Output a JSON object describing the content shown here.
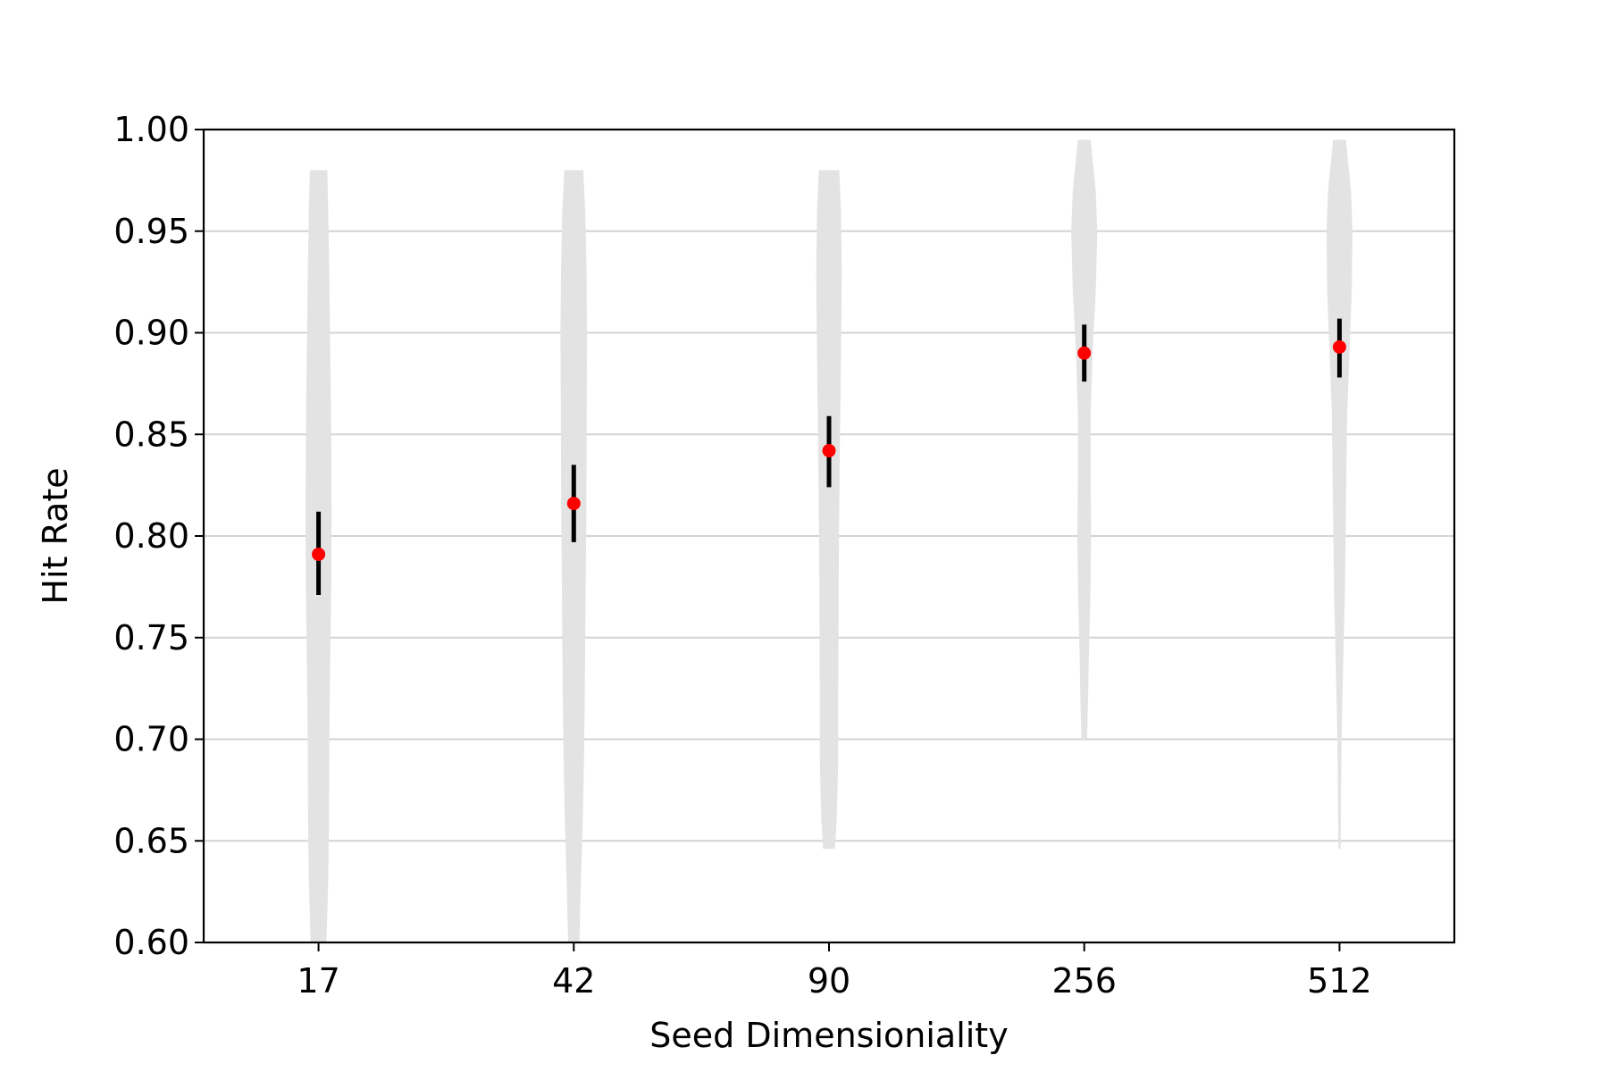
{
  "chart_data": {
    "type": "violin",
    "title": "",
    "xlabel": "Seed Dimensioniality",
    "ylabel": "Hit Rate",
    "ylim": [
      0.6,
      1.0
    ],
    "yticks": [
      "0.60",
      "0.65",
      "0.70",
      "0.75",
      "0.80",
      "0.85",
      "0.90",
      "0.95",
      "1.00"
    ],
    "grid": "y-major",
    "categories": [
      "17",
      "42",
      "90",
      "256",
      "512"
    ],
    "means": [
      0.791,
      0.816,
      0.842,
      0.89,
      0.893
    ],
    "error_low": [
      0.771,
      0.797,
      0.824,
      0.876,
      0.878
    ],
    "error_high": [
      0.812,
      0.835,
      0.859,
      0.904,
      0.907
    ],
    "violins": [
      {
        "min": 0.6,
        "max": 0.98,
        "profile": [
          [
            0.98,
            0.034
          ],
          [
            0.96,
            0.038
          ],
          [
            0.93,
            0.042
          ],
          [
            0.9,
            0.045
          ],
          [
            0.87,
            0.048
          ],
          [
            0.84,
            0.05
          ],
          [
            0.81,
            0.051
          ],
          [
            0.78,
            0.05
          ],
          [
            0.75,
            0.047
          ],
          [
            0.72,
            0.044
          ],
          [
            0.69,
            0.042
          ],
          [
            0.66,
            0.041
          ],
          [
            0.63,
            0.038
          ],
          [
            0.6,
            0.031
          ]
        ]
      },
      {
        "min": 0.6,
        "max": 0.98,
        "profile": [
          [
            0.98,
            0.037
          ],
          [
            0.96,
            0.045
          ],
          [
            0.93,
            0.05
          ],
          [
            0.9,
            0.052
          ],
          [
            0.87,
            0.051
          ],
          [
            0.84,
            0.05
          ],
          [
            0.81,
            0.049
          ],
          [
            0.78,
            0.047
          ],
          [
            0.75,
            0.045
          ],
          [
            0.72,
            0.043
          ],
          [
            0.69,
            0.04
          ],
          [
            0.66,
            0.035
          ],
          [
            0.63,
            0.028
          ],
          [
            0.6,
            0.022
          ]
        ]
      },
      {
        "min": 0.646,
        "max": 0.98,
        "profile": [
          [
            0.98,
            0.04
          ],
          [
            0.96,
            0.047
          ],
          [
            0.93,
            0.05
          ],
          [
            0.9,
            0.048
          ],
          [
            0.87,
            0.045
          ],
          [
            0.84,
            0.042
          ],
          [
            0.81,
            0.04
          ],
          [
            0.78,
            0.038
          ],
          [
            0.75,
            0.037
          ],
          [
            0.72,
            0.036
          ],
          [
            0.69,
            0.036
          ],
          [
            0.66,
            0.03
          ],
          [
            0.646,
            0.023
          ]
        ]
      },
      {
        "min": 0.7,
        "max": 0.995,
        "profile": [
          [
            0.995,
            0.025
          ],
          [
            0.97,
            0.045
          ],
          [
            0.95,
            0.051
          ],
          [
            0.92,
            0.045
          ],
          [
            0.89,
            0.032
          ],
          [
            0.86,
            0.025
          ],
          [
            0.83,
            0.025
          ],
          [
            0.8,
            0.027
          ],
          [
            0.77,
            0.024
          ],
          [
            0.74,
            0.018
          ],
          [
            0.72,
            0.015
          ],
          [
            0.7,
            0.011
          ]
        ]
      },
      {
        "min": 0.646,
        "max": 0.995,
        "profile": [
          [
            0.995,
            0.025
          ],
          [
            0.97,
            0.045
          ],
          [
            0.95,
            0.051
          ],
          [
            0.92,
            0.048
          ],
          [
            0.89,
            0.039
          ],
          [
            0.86,
            0.03
          ],
          [
            0.83,
            0.027
          ],
          [
            0.8,
            0.024
          ],
          [
            0.77,
            0.021
          ],
          [
            0.74,
            0.015
          ],
          [
            0.7,
            0.008
          ],
          [
            0.67,
            0.006
          ],
          [
            0.646,
            0.004
          ]
        ]
      }
    ],
    "colors": {
      "violin": "#e3e3e3",
      "mean": "#ff0000",
      "errorbar": "#000000",
      "grid": "#d3d3d3",
      "axis": "#000000"
    }
  }
}
